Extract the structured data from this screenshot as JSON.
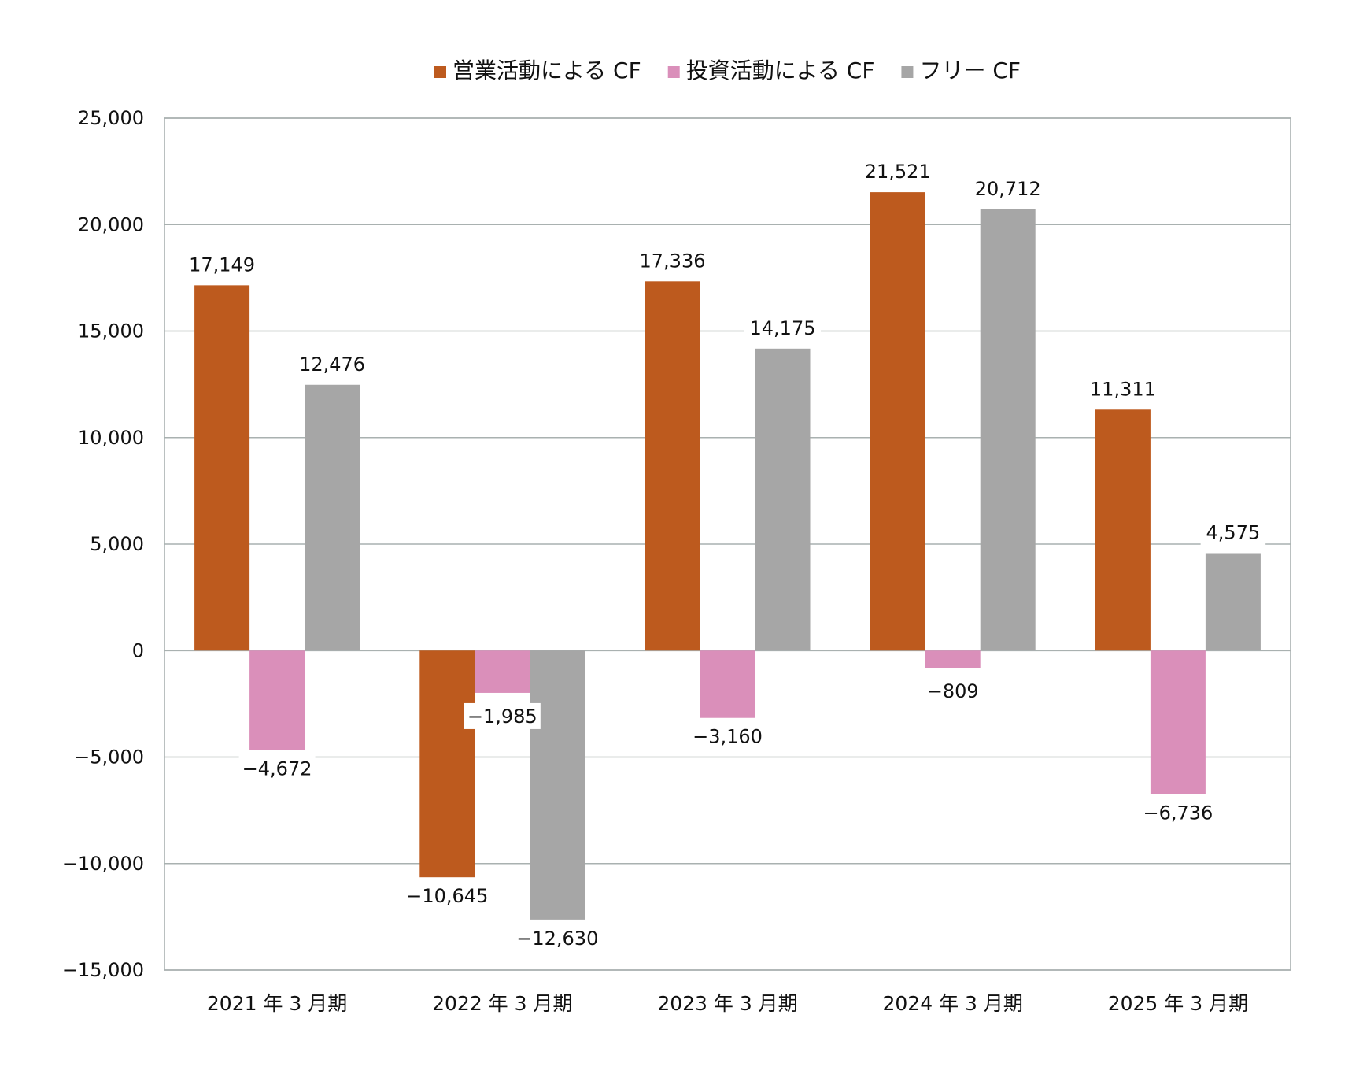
{
  "chart_data": {
    "type": "bar",
    "title": "",
    "xlabel": "",
    "ylabel": "",
    "categories": [
      "2021 年 3 月期",
      "2022 年 3 月期",
      "2023 年 3 月期",
      "2024 年 3 月期",
      "2025 年 3 月期"
    ],
    "series": [
      {
        "name": "営業活動による CF",
        "color": "#BD5A1E",
        "values": [
          17149,
          -10645,
          17336,
          21521,
          11311
        ]
      },
      {
        "name": "投資活動による CF",
        "color": "#DA8FBA",
        "values": [
          -4672,
          -1985,
          -3160,
          -809,
          -6736
        ]
      },
      {
        "name": "フリー CF",
        "color": "#A6A6A6",
        "values": [
          12476,
          -12630,
          14175,
          20712,
          4575
        ]
      }
    ],
    "data_labels": [
      [
        "17,149",
        "−10,645",
        "17,336",
        "21,521",
        "11,311"
      ],
      [
        "−4,672",
        "−1,985",
        "−3,160",
        "−809",
        "−6,736"
      ],
      [
        "12,476",
        "−12,630",
        "14,175",
        "20,712",
        "4,575"
      ]
    ],
    "ylim": [
      -15000,
      25000
    ],
    "yticks": [
      25000,
      20000,
      15000,
      10000,
      5000,
      0,
      -5000,
      -10000,
      -15000
    ],
    "ytick_labels": [
      "25,000",
      "20,000",
      "15,000",
      "10,000",
      "5,000",
      "0",
      "−5,000",
      "−10,000",
      "−15,000"
    ],
    "grid": true,
    "legend_position": "top-center",
    "colors": {
      "gridline": "#A9B1B0",
      "frame": "#A9B1B0",
      "text": "#111111"
    }
  }
}
